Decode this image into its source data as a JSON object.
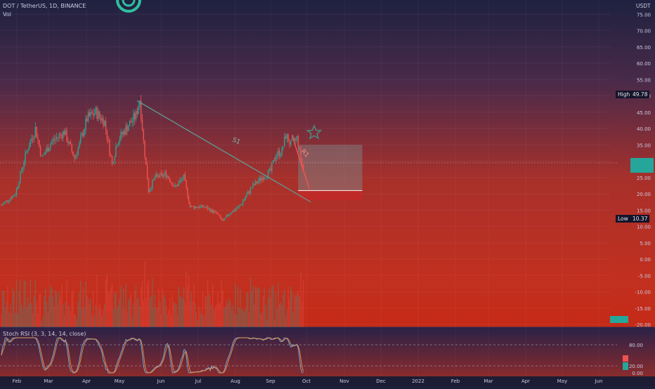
{
  "header": {
    "symbol_line": "DOT / TetherUS, 1D, BINANCE",
    "vol_label": "Vol"
  },
  "price_axis": {
    "currency": "USDT",
    "ticks": [
      "75.00",
      "70.00",
      "65.00",
      "60.00",
      "55.00",
      "50.00",
      "45.00",
      "40.00",
      "35.00",
      "30.00",
      "25.00",
      "20.00",
      "15.00",
      "10.00",
      "5.00",
      "0.00",
      "-5.00",
      "-10.00",
      "-15.00",
      "-20.00"
    ],
    "high_label": "High",
    "high_value": "49.78",
    "low_label": "Low",
    "low_value": "10.37"
  },
  "annotations": {
    "support_line_label": "S1",
    "resistance_line_label": "R1"
  },
  "oscillator": {
    "title": "Stoch RSI (3, 3, 14, 14, close)",
    "ticks": [
      "80.00",
      "20.00",
      "0.00"
    ]
  },
  "time_axis": {
    "labels": [
      "Feb",
      "Mar",
      "Apr",
      "May",
      "Jun",
      "Jul",
      "Aug",
      "Sep",
      "Oct",
      "Nov",
      "Dec",
      "2022",
      "Feb",
      "Mar",
      "Apr",
      "May",
      "Jun"
    ]
  },
  "colors": {
    "up": "#26a69a",
    "down": "#ef5350",
    "trendline": "#5a9e94",
    "resistance": "#ff5252",
    "target_zone": "#7f8c8d",
    "stop_zone": "#c62828",
    "star": "#4f8a82"
  },
  "chart_data": {
    "type": "candlestick",
    "symbol": "DOT / TetherUS",
    "interval": "1D",
    "exchange": "BINANCE",
    "y_range": [
      -22,
      78
    ],
    "series_close_points": [
      {
        "x": "2021-01-25",
        "y": 16.5
      },
      {
        "x": "2021-02-05",
        "y": 20
      },
      {
        "x": "2021-02-14",
        "y": 33
      },
      {
        "x": "2021-02-21",
        "y": 40
      },
      {
        "x": "2021-02-26",
        "y": 31
      },
      {
        "x": "2021-03-06",
        "y": 36
      },
      {
        "x": "2021-03-16",
        "y": 39
      },
      {
        "x": "2021-03-24",
        "y": 31
      },
      {
        "x": "2021-03-28",
        "y": 35
      },
      {
        "x": "2021-04-03",
        "y": 43
      },
      {
        "x": "2021-04-10",
        "y": 45
      },
      {
        "x": "2021-04-17",
        "y": 42
      },
      {
        "x": "2021-04-23",
        "y": 29
      },
      {
        "x": "2021-04-27",
        "y": 36
      },
      {
        "x": "2021-05-04",
        "y": 40
      },
      {
        "x": "2021-05-12",
        "y": 44
      },
      {
        "x": "2021-05-15",
        "y": 49
      },
      {
        "x": "2021-05-18",
        "y": 36
      },
      {
        "x": "2021-05-22",
        "y": 21
      },
      {
        "x": "2021-05-27",
        "y": 25
      },
      {
        "x": "2021-06-05",
        "y": 26
      },
      {
        "x": "2021-06-12",
        "y": 22
      },
      {
        "x": "2021-06-19",
        "y": 25
      },
      {
        "x": "2021-06-24",
        "y": 16
      },
      {
        "x": "2021-07-05",
        "y": 16
      },
      {
        "x": "2021-07-15",
        "y": 14
      },
      {
        "x": "2021-07-20",
        "y": 11.5
      },
      {
        "x": "2021-07-25",
        "y": 14
      },
      {
        "x": "2021-08-02",
        "y": 16
      },
      {
        "x": "2021-08-12",
        "y": 22
      },
      {
        "x": "2021-08-20",
        "y": 25
      },
      {
        "x": "2021-08-27",
        "y": 27
      },
      {
        "x": "2021-08-31",
        "y": 32
      },
      {
        "x": "2021-09-05",
        "y": 33
      },
      {
        "x": "2021-09-08",
        "y": 38
      },
      {
        "x": "2021-09-12",
        "y": 35
      },
      {
        "x": "2021-09-17",
        "y": 37
      },
      {
        "x": "2021-09-22",
        "y": 27
      }
    ],
    "trendlines": [
      {
        "name": "S1",
        "from": {
          "x": "2021-05-14",
          "y": 48.5
        },
        "to": {
          "x": "2021-09-29",
          "y": 17.5
        }
      },
      {
        "name": "R1",
        "from": {
          "x": "2021-09-14",
          "y": 38
        },
        "to": {
          "x": "2021-09-28",
          "y": 21.5
        }
      }
    ],
    "target_zone": {
      "y_from": 21,
      "y_to": 35,
      "x_from": "2021-09-19",
      "x_to": "2021-11-09"
    },
    "stop_zone": {
      "y_from": 18,
      "y_to": 21
    },
    "xlabel": "",
    "ylabel": ""
  }
}
